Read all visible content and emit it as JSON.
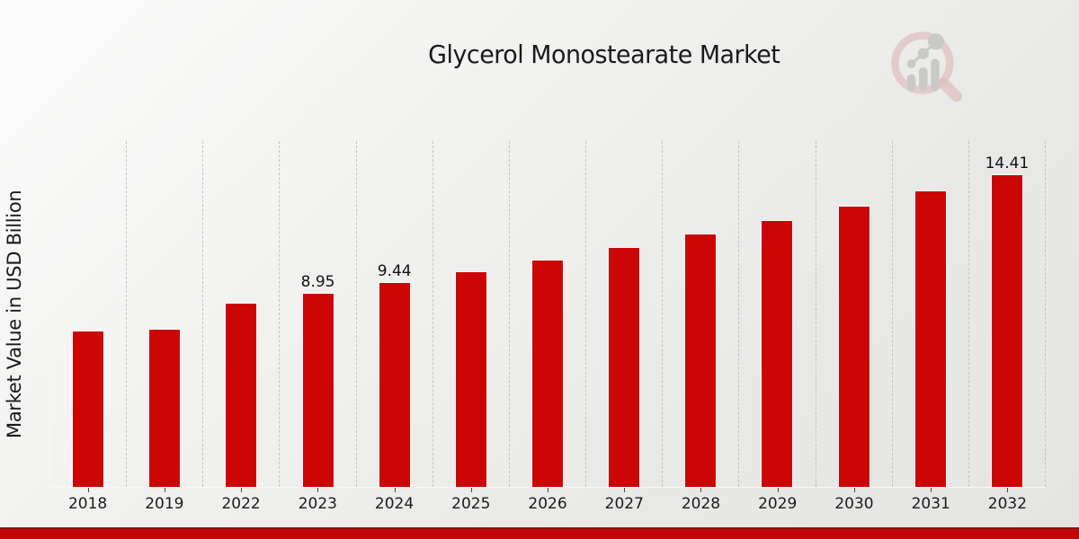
{
  "chart_data": {
    "type": "bar",
    "title": "Glycerol Monostearate Market",
    "ylabel": "Market Value in USD Billion",
    "xlabel": "",
    "categories": [
      "2018",
      "2019",
      "2022",
      "2023",
      "2024",
      "2025",
      "2026",
      "2027",
      "2028",
      "2029",
      "2030",
      "2031",
      "2032"
    ],
    "values": [
      7.2,
      7.28,
      8.46,
      8.95,
      9.44,
      9.95,
      10.49,
      11.06,
      11.66,
      12.3,
      12.96,
      13.67,
      14.41
    ],
    "data_labels": [
      "",
      "",
      "",
      "8.95",
      "9.44",
      "",
      "",
      "",
      "",
      "",
      "",
      "",
      "14.41"
    ],
    "ylim": [
      0,
      16
    ],
    "grid": "vertical-dashed",
    "legend": "none",
    "bar_color": "#cc0505"
  },
  "colors": {
    "bar": "#cc0505",
    "footer_band": "#c10505",
    "footer_band_edge": "#8f0e0e",
    "gridline": "#c4c4c4",
    "text": "#1a1a1a",
    "logo_pink": "#debfbd",
    "logo_gray": "#c9c9c7"
  },
  "icons": {
    "brand_logo": "magnifier-bar-chart-icon"
  }
}
